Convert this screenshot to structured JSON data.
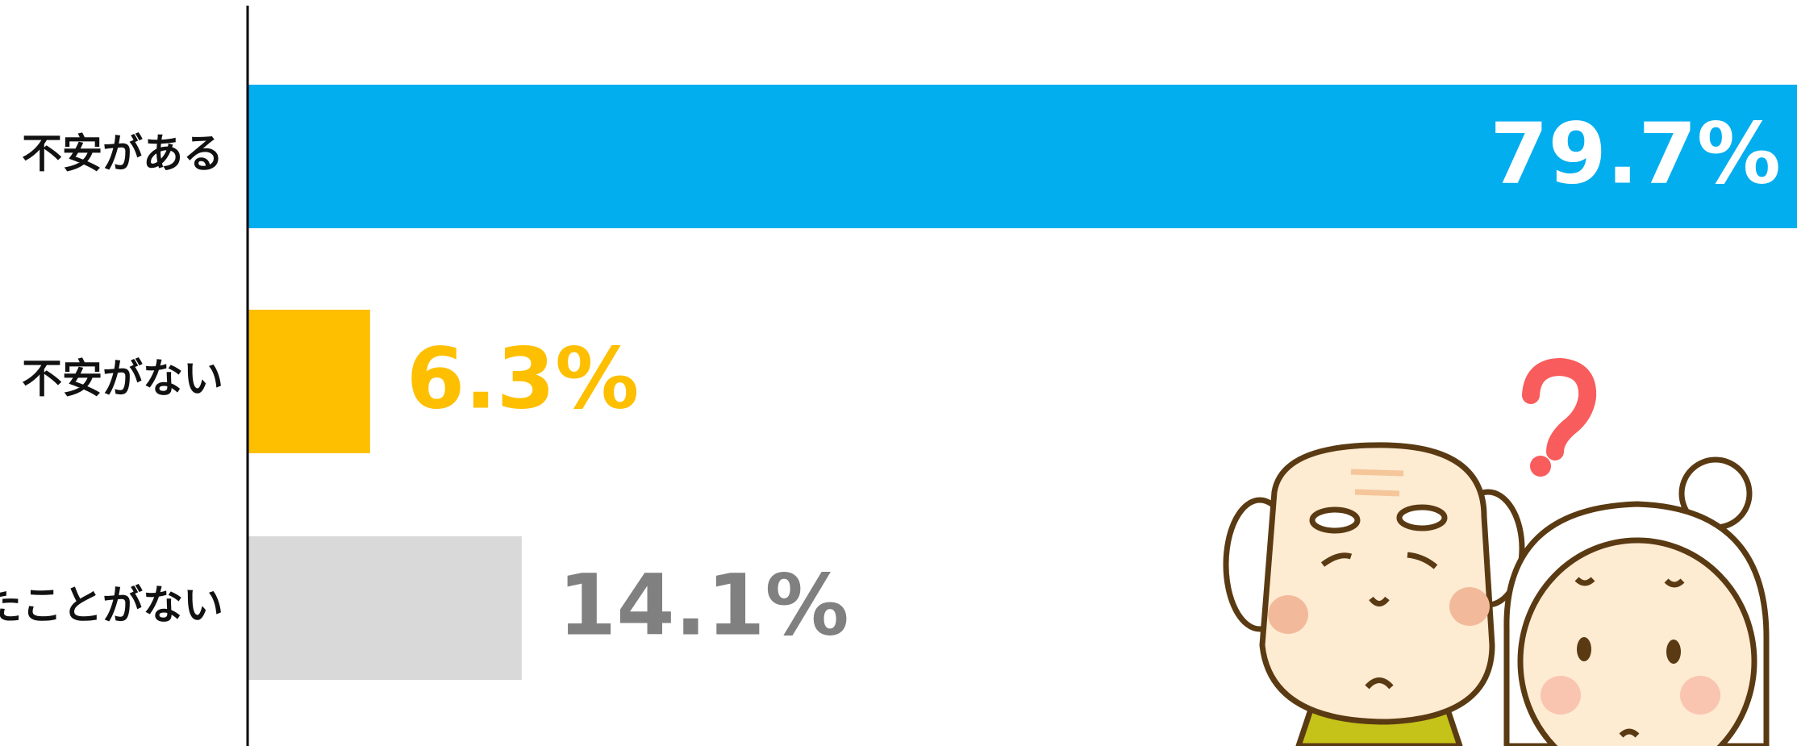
{
  "chart_data": {
    "type": "bar",
    "orientation": "horizontal",
    "categories": [
      "不安がある",
      "不安がない",
      "たことがない"
    ],
    "values": [
      79.7,
      6.3,
      14.1
    ],
    "value_labels": [
      "79.7%",
      "6.3%",
      "14.1%"
    ],
    "colors": [
      "#03aeef",
      "#fdbf00",
      "#d9d9d9"
    ],
    "label_colors": [
      "#ffffff",
      "#fdbf00",
      "#808080"
    ],
    "xlim": [
      0,
      79.7
    ]
  }
}
